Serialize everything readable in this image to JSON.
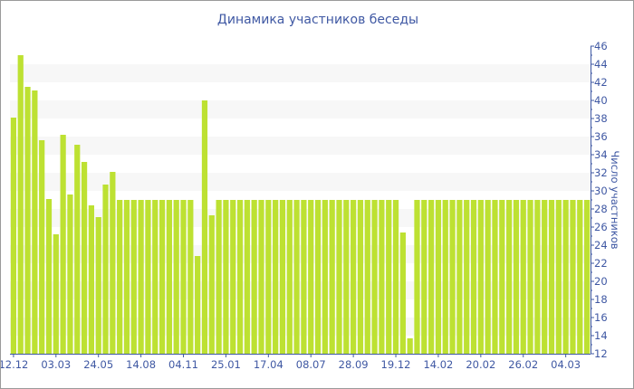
{
  "chart_data": {
    "type": "bar",
    "title": "Динамика участников беседы",
    "xlabel": "",
    "ylabel": "Число участников",
    "ylim": [
      12,
      46
    ],
    "yticks": [
      12,
      14,
      16,
      18,
      20,
      22,
      24,
      26,
      28,
      30,
      32,
      34,
      36,
      38,
      40,
      42,
      44,
      46
    ],
    "xtick_labels": [
      "12.12",
      "03.03",
      "24.05",
      "14.08",
      "04.11",
      "25.01",
      "17.04",
      "08.07",
      "28.09",
      "19.12",
      "14.02",
      "20.02",
      "26.02",
      "04.03"
    ],
    "xtick_every": 6,
    "values": [
      38.1,
      45,
      41.5,
      41.1,
      35.6,
      29.1,
      25.2,
      36.2,
      29.6,
      35.1,
      33.2,
      28.4,
      27.1,
      30.7,
      32.1,
      29,
      29,
      29,
      29,
      29,
      29,
      29,
      29,
      29,
      29,
      29,
      22.8,
      40,
      27.3,
      29,
      29,
      29,
      29,
      29,
      29,
      29,
      29,
      29,
      29,
      29,
      29,
      29,
      29,
      29,
      29,
      29,
      29,
      29,
      29,
      29,
      29,
      29,
      29,
      29,
      29,
      25.4,
      13.7,
      29,
      29,
      29,
      29,
      29,
      29,
      29,
      29,
      29,
      29,
      29,
      29,
      29,
      29,
      29,
      29,
      29,
      29,
      29,
      29,
      29,
      29,
      29,
      29,
      29
    ],
    "bar_color": "#bde132",
    "axis_color": "#3f58a3",
    "grid": "alternating bands",
    "legend": "none"
  }
}
